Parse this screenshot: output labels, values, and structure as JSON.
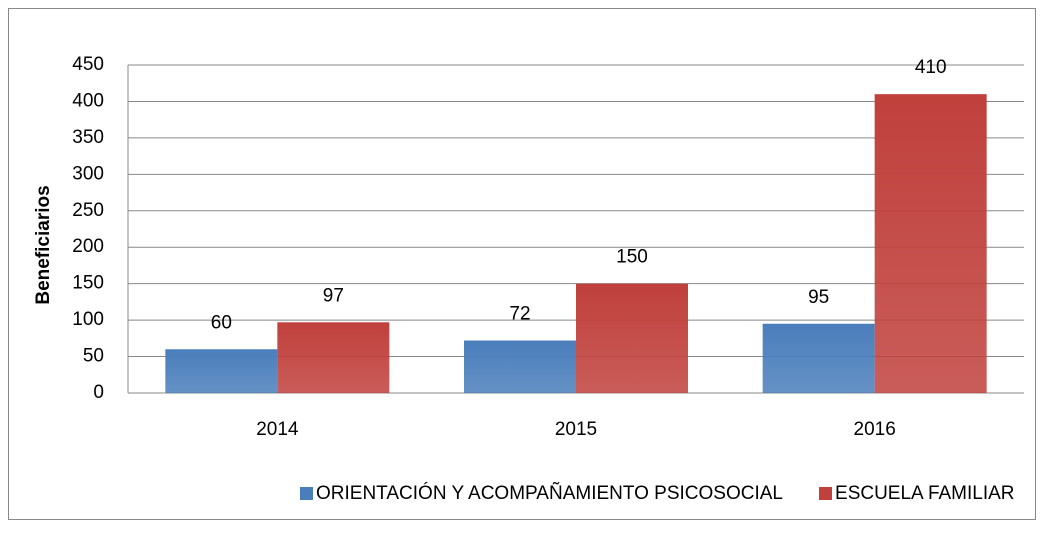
{
  "chart_data": {
    "type": "bar",
    "y_label": "Beneficiarios",
    "categories": [
      "2014",
      "2015",
      "2016"
    ],
    "series": [
      {
        "name": "ORIENTACIÓN Y ACOMPAÑAMIENTO PSICOSOCIAL",
        "color": "#4a7ebb",
        "values": [
          60,
          72,
          95
        ]
      },
      {
        "name": "ESCUELA FAMILIAR",
        "color": "#c0403c",
        "values": [
          97,
          150,
          410
        ]
      }
    ],
    "ylim": [
      0,
      450
    ],
    "yticks": [
      0,
      50,
      100,
      150,
      200,
      250,
      300,
      350,
      400,
      450
    ],
    "grid": true,
    "legend": "bottom"
  }
}
